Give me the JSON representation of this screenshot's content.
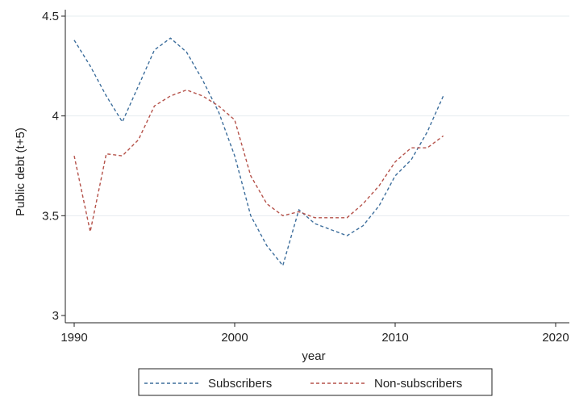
{
  "chart_data": {
    "type": "line",
    "title": "",
    "xlabel": "year",
    "ylabel": "Public debt (t+5)",
    "xlim": [
      1990,
      2020
    ],
    "ylim": [
      3,
      4.5
    ],
    "x_ticks": [
      1990,
      2000,
      2010,
      2020
    ],
    "y_ticks": [
      3,
      3.5,
      4,
      4.5
    ],
    "y_tick_labels": [
      "3",
      "3.5",
      "4",
      "4.5"
    ],
    "grid": "horizontal",
    "legend_position": "bottom",
    "x": [
      1990,
      1991,
      1992,
      1993,
      1994,
      1995,
      1996,
      1997,
      1998,
      1999,
      2000,
      2001,
      2002,
      2003,
      2004,
      2005,
      2006,
      2007,
      2008,
      2009,
      2010,
      2011,
      2012,
      2013
    ],
    "series": [
      {
        "name": "Subscribers",
        "color": "#3d6e9c",
        "values": [
          4.38,
          4.25,
          4.1,
          3.97,
          4.15,
          4.33,
          4.39,
          4.32,
          4.18,
          4.02,
          3.8,
          3.5,
          3.35,
          3.25,
          3.53,
          3.46,
          3.43,
          3.4,
          3.45,
          3.55,
          3.7,
          3.78,
          3.92,
          4.1
        ]
      },
      {
        "name": "Non-subscribers",
        "color": "#b5524a",
        "values": [
          3.8,
          3.42,
          3.81,
          3.8,
          3.88,
          4.05,
          4.1,
          4.13,
          4.1,
          4.05,
          3.98,
          3.7,
          3.56,
          3.5,
          3.52,
          3.49,
          3.49,
          3.49,
          3.56,
          3.65,
          3.77,
          3.84,
          3.84,
          3.9
        ]
      }
    ]
  }
}
